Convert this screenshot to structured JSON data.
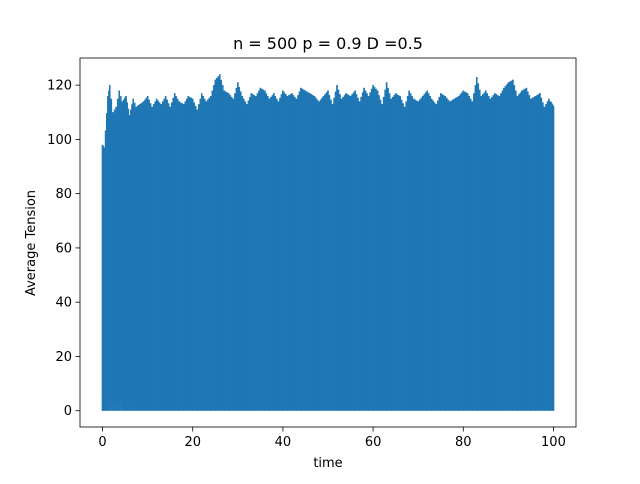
{
  "chart_data": {
    "type": "line",
    "title": "n = 500 p = 0.9 D =0.5",
    "xlabel": "time",
    "ylabel": "Average Tension",
    "xlim": [
      -5,
      105
    ],
    "ylim": [
      -6,
      130
    ],
    "x_ticks": [
      0,
      20,
      40,
      60,
      80,
      100
    ],
    "y_ticks": [
      0,
      20,
      40,
      60,
      80,
      100,
      120
    ],
    "x_tick_labels": [
      "0",
      "20",
      "40",
      "60",
      "80",
      "100"
    ],
    "y_tick_labels": [
      "0",
      "20",
      "40",
      "60",
      "80",
      "100",
      "120"
    ],
    "grid": false,
    "legend": "none",
    "series": [
      {
        "color": "#1f77b4",
        "baseline": 0,
        "x": [
          0,
          0.4,
          1.2,
          1.6,
          2.3,
          3.0,
          3.7,
          4.4,
          5.2,
          6.0,
          6.8,
          7.5,
          8.3,
          9.1,
          10.0,
          11.0,
          12.0,
          13.0,
          14.0,
          15.0,
          16.0,
          17.0,
          18.0,
          19.0,
          20.0,
          21.0,
          22.0,
          23.0,
          24.0,
          25.0,
          26.0,
          27.0,
          28.0,
          29.0,
          30.0,
          31.0,
          32.0,
          33.0,
          34.0,
          35.0,
          36.0,
          37.0,
          38.0,
          39.0,
          40.0,
          41.0,
          42.0,
          43.0,
          44.0,
          45.0,
          46.0,
          47.0,
          48.0,
          49.0,
          50.0,
          51.0,
          52.0,
          53.0,
          54.0,
          55.0,
          56.0,
          57.0,
          58.0,
          59.0,
          60.0,
          61.0,
          62.0,
          63.0,
          64.0,
          65.0,
          66.0,
          67.0,
          68.0,
          69.0,
          70.0,
          71.0,
          72.0,
          73.0,
          74.0,
          75.0,
          76.0,
          77.0,
          78.0,
          79.0,
          80.0,
          81.0,
          82.0,
          83.0,
          84.0,
          85.0,
          86.0,
          87.0,
          88.0,
          89.0,
          90.0,
          91.0,
          92.0,
          93.0,
          94.0,
          95.0,
          96.0,
          97.0,
          98.0,
          99.0,
          100.0
        ],
        "y": [
          98,
          97,
          116,
          120,
          110,
          112,
          118,
          114,
          116,
          109,
          115,
          112,
          113,
          114,
          116,
          112,
          115,
          113,
          116,
          112,
          117,
          114,
          113,
          116,
          115,
          111,
          117,
          114,
          116,
          122,
          124,
          118,
          117,
          115,
          121,
          116,
          113,
          117,
          116,
          119,
          118,
          115,
          117,
          114,
          118,
          116,
          117,
          115,
          119,
          118,
          117,
          116,
          114,
          116,
          118,
          113,
          120,
          115,
          117,
          116,
          118,
          114,
          119,
          116,
          120,
          118,
          113,
          121,
          115,
          117,
          116,
          112,
          118,
          115,
          114,
          116,
          118,
          115,
          113,
          117,
          116,
          114,
          115,
          116,
          118,
          117,
          114,
          123,
          116,
          118,
          115,
          117,
          116,
          119,
          121,
          122,
          116,
          118,
          119,
          115,
          116,
          117,
          112,
          115,
          112
        ]
      }
    ]
  }
}
